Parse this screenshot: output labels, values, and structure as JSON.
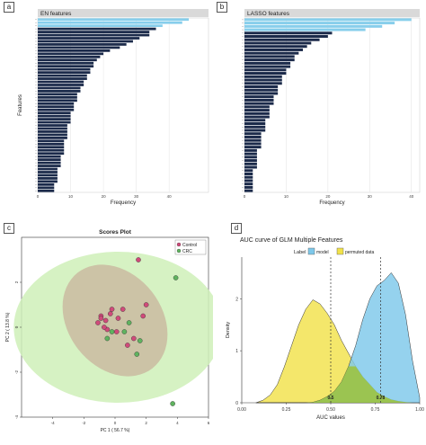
{
  "panels": {
    "a": {
      "tag": "a",
      "title": "EN features",
      "xlabel": "Frequency",
      "ylabel": "Features",
      "colors": {
        "top": "#87CEEB",
        "rest": "#1B2A4A",
        "grid": "#E6E6E6"
      }
    },
    "b": {
      "tag": "b",
      "title": "LASSO features",
      "xlabel": "Frequency",
      "colors": {
        "top": "#87CEEB",
        "rest": "#1B2A4A",
        "grid": "#E6E6E6"
      }
    },
    "c": {
      "tag": "c",
      "title": "Scores Plot",
      "xlabel": "PC 1 ( 56.7 %)",
      "ylabel": "PC 2 ( 13.8 %)",
      "legend": [
        {
          "name": "Control",
          "color": "#D04A7A"
        },
        {
          "name": "CRC",
          "color": "#5FB35F"
        }
      ]
    },
    "d": {
      "tag": "d",
      "title": "AUC curve of GLM Multiple Features",
      "xlabel": "AUC values",
      "ylabel": "Density",
      "legend_title": "Label",
      "legend": [
        {
          "name": "model",
          "color": "#7EC8EA"
        },
        {
          "name": "permuted data",
          "color": "#F2E24A"
        }
      ],
      "vline_labels": [
        "0.5",
        "0.78"
      ]
    }
  },
  "chart_data": [
    {
      "type": "bar",
      "orientation": "horizontal",
      "panel": "a",
      "title": "EN features",
      "xlabel": "Frequency",
      "ylabel": "Features",
      "xlim": [
        0,
        52
      ],
      "xticks": [
        "0",
        "10",
        "20",
        "30",
        "40"
      ],
      "values": [
        46,
        44,
        38,
        36,
        34,
        34,
        31,
        29,
        27,
        25,
        22,
        20,
        19,
        18,
        17,
        17,
        16,
        16,
        15,
        15,
        14,
        14,
        13,
        13,
        12,
        12,
        12,
        11,
        11,
        11,
        10,
        10,
        10,
        10,
        9,
        9,
        9,
        9,
        9,
        8,
        8,
        8,
        8,
        8,
        7,
        7,
        7,
        7,
        6,
        6,
        6,
        6,
        6,
        5,
        5,
        5
      ],
      "highlight_count": 3
    },
    {
      "type": "bar",
      "orientation": "horizontal",
      "panel": "b",
      "title": "LASSO features",
      "xlabel": "Frequency",
      "xlim": [
        0,
        42
      ],
      "xticks": [
        "0",
        "10",
        "20",
        "30",
        "40"
      ],
      "values": [
        40,
        36,
        33,
        29,
        21,
        20,
        18,
        16,
        15,
        14,
        13,
        12,
        12,
        11,
        11,
        10,
        10,
        9,
        9,
        9,
        8,
        8,
        8,
        7,
        7,
        7,
        6,
        6,
        6,
        6,
        5,
        5,
        5,
        5,
        4,
        4,
        4,
        4,
        4,
        3,
        3,
        3,
        3,
        3,
        3,
        2,
        2,
        2,
        2,
        2,
        2,
        2
      ],
      "highlight_count": 4
    },
    {
      "type": "scatter",
      "panel": "c",
      "title": "Scores Plot",
      "xlabel": "PC 1 ( 56.7 %)",
      "ylabel": "PC 2 ( 13.8 %)",
      "xlim": [
        -6,
        6
      ],
      "ylim": [
        -4,
        4
      ],
      "xticks": [
        "-4",
        "-2",
        "0",
        "2",
        "4",
        "6"
      ],
      "yticks": [
        "-4",
        "-2",
        "0",
        "2"
      ],
      "series": [
        {
          "name": "Control",
          "color": "#D04A7A",
          "points": [
            [
              1.5,
              3.0
            ],
            [
              2.0,
              1.0
            ],
            [
              1.8,
              0.5
            ],
            [
              0.5,
              0.8
            ],
            [
              0.2,
              0.4
            ],
            [
              -0.3,
              0.6
            ],
            [
              -0.6,
              0.3
            ],
            [
              -0.9,
              0.5
            ],
            [
              -1.1,
              0.2
            ],
            [
              -0.5,
              -0.1
            ],
            [
              0.1,
              -0.2
            ],
            [
              -0.2,
              0.8
            ],
            [
              0.8,
              -0.8
            ],
            [
              1.2,
              -0.5
            ],
            [
              -0.7,
              0.0
            ],
            [
              -0.9,
              0.4
            ]
          ]
        },
        {
          "name": "CRC",
          "color": "#5FB35F",
          "points": [
            [
              3.9,
              2.2
            ],
            [
              3.7,
              -3.4
            ],
            [
              1.6,
              -0.6
            ],
            [
              0.6,
              -0.2
            ],
            [
              -0.5,
              -0.5
            ],
            [
              -0.2,
              -0.2
            ],
            [
              0.9,
              0.2
            ],
            [
              1.4,
              -1.2
            ]
          ]
        }
      ]
    },
    {
      "type": "area",
      "panel": "d",
      "title": "AUC curve of GLM Multiple Features",
      "xlabel": "AUC values",
      "ylabel": "Density",
      "xlim": [
        0,
        1
      ],
      "ylim": [
        0,
        2.8
      ],
      "xticks": [
        "0.00",
        "0.25",
        "0.50",
        "0.75",
        "1.00"
      ],
      "yticks": [
        "0",
        "1",
        "2"
      ],
      "vlines": [
        0.5,
        0.78
      ],
      "x": [
        0.08,
        0.12,
        0.16,
        0.2,
        0.24,
        0.28,
        0.32,
        0.36,
        0.4,
        0.44,
        0.48,
        0.52,
        0.56,
        0.6,
        0.64,
        0.68,
        0.72,
        0.76,
        0.8,
        0.84,
        0.88,
        0.92,
        0.96,
        1.0
      ],
      "series": [
        {
          "name": "permuted data",
          "color": "#F2E24A",
          "values": [
            0.0,
            0.05,
            0.15,
            0.35,
            0.7,
            1.1,
            1.5,
            1.8,
            1.98,
            1.9,
            1.72,
            1.5,
            1.2,
            0.95,
            0.7,
            0.5,
            0.35,
            0.2,
            0.12,
            0.06,
            0.03,
            0.01,
            0.0,
            0.0
          ]
        },
        {
          "name": "model",
          "color": "#7EC8EA",
          "values": [
            0.0,
            0.0,
            0.0,
            0.0,
            0.0,
            0.0,
            0.0,
            0.0,
            0.01,
            0.05,
            0.12,
            0.22,
            0.4,
            0.7,
            1.1,
            1.6,
            2.0,
            2.25,
            2.35,
            2.5,
            2.3,
            1.7,
            0.8,
            0.1
          ]
        }
      ]
    }
  ]
}
